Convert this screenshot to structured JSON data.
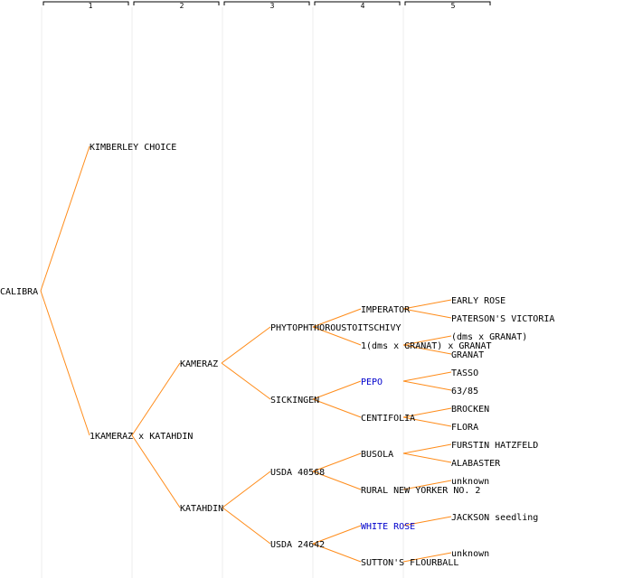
{
  "colors": {
    "edge": "#ff8c1a",
    "highlight": "#0000cc",
    "text": "#000000",
    "gridline": "#ececec"
  },
  "generations": [
    "1",
    "2",
    "3",
    "4",
    "5"
  ],
  "nodes": {
    "calibra": {
      "label": "CALIBRA"
    },
    "kimberley_choice": {
      "label": "KIMBERLEY CHOICE"
    },
    "kameraz_x_katahdin": {
      "label": "1KAMERAZ x KATAHDIN"
    },
    "kameraz": {
      "label": "KAMERAZ"
    },
    "katahdin": {
      "label": "KATAHDIN"
    },
    "phytophthoroustoitschivy": {
      "label": "PHYTOPHTHOROUSTOITSCHIVY"
    },
    "sickingen": {
      "label": "SICKINGEN"
    },
    "usda_40568": {
      "label": "USDA 40568"
    },
    "usda_24642": {
      "label": "USDA 24642"
    },
    "imperator": {
      "label": "IMPERATOR"
    },
    "dms_granat_cross": {
      "label": "1(dms x GRANAT) x GRANAT"
    },
    "pepo": {
      "label": "PEPO"
    },
    "centifolia": {
      "label": "CENTIFOLIA"
    },
    "busola": {
      "label": "BUSOLA"
    },
    "rural_new_yorker_no_2": {
      "label": "RURAL NEW YORKER NO. 2"
    },
    "white_rose": {
      "label": "WHITE ROSE"
    },
    "suttons_flourball": {
      "label": "SUTTON'S FLOURBALL"
    },
    "early_rose": {
      "label": "EARLY ROSE"
    },
    "patersons_victoria": {
      "label": "PATERSON'S VICTORIA"
    },
    "dms_x_granat": {
      "label": "(dms x GRANAT)"
    },
    "granat": {
      "label": "GRANAT"
    },
    "tasso": {
      "label": "TASSO"
    },
    "code_63_85": {
      "label": "63/85"
    },
    "brocken": {
      "label": "BROCKEN"
    },
    "flora": {
      "label": "FLORA"
    },
    "furstin_hatzfeld": {
      "label": "FURSTIN HATZFELD"
    },
    "alabaster": {
      "label": "ALABASTER"
    },
    "unknown_1": {
      "label": "unknown"
    },
    "jackson_seedling": {
      "label": "JACKSON seedling"
    },
    "unknown_2": {
      "label": "unknown"
    }
  }
}
